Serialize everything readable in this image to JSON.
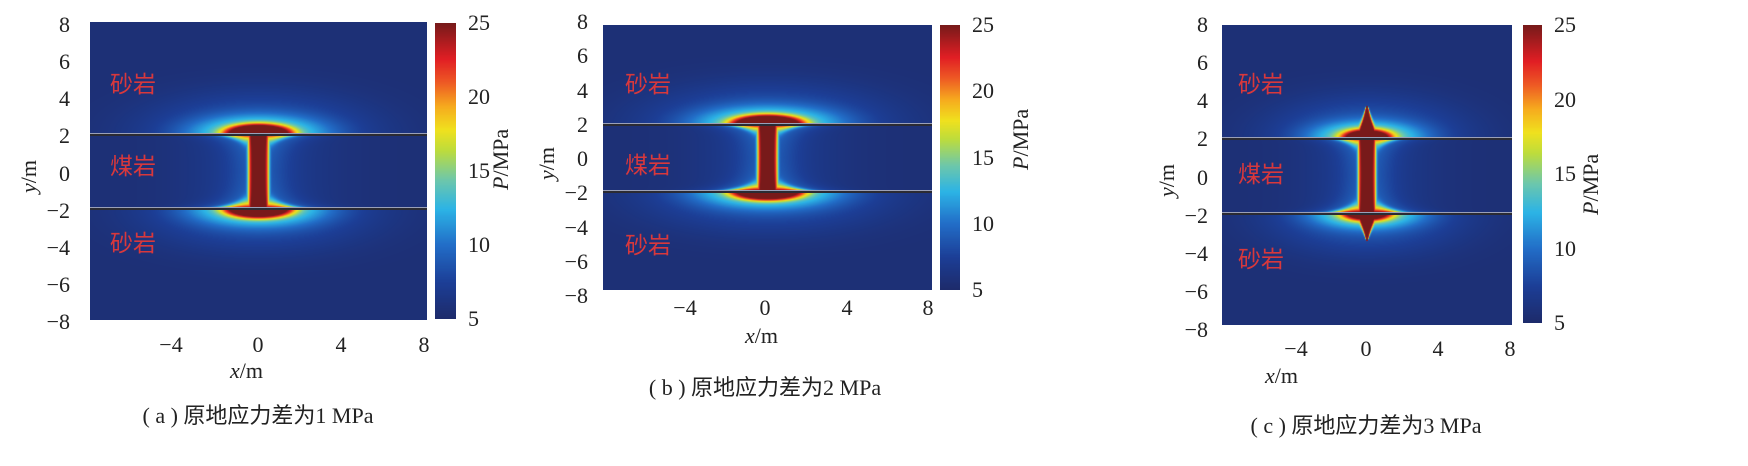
{
  "chart_data": [
    {
      "type": "heatmap",
      "panel": "a",
      "caption": "( a ) 原地应力差为1 MPa",
      "xlabel_var": "x",
      "xlabel_unit": "/m",
      "ylabel_var": "y",
      "ylabel_unit": "/m",
      "xlim": [
        -8,
        8
      ],
      "ylim": [
        -8,
        8
      ],
      "xticks": [
        "−4",
        "0",
        "4",
        "8"
      ],
      "yticks": [
        "8",
        "6",
        "4",
        "2",
        "0",
        "−2",
        "−4",
        "−6",
        "−8"
      ],
      "colorbar": {
        "label_var": "P",
        "label_unit": "/MPa",
        "range": [
          5,
          25
        ],
        "ticks": [
          "25",
          "20",
          "15",
          "10",
          "5"
        ],
        "colormap": "jet"
      },
      "layer_interfaces_y": [
        2,
        -2
      ],
      "regions": [
        {
          "label": "砂岩"
        },
        {
          "label": "煤岩"
        },
        {
          "label": "砂岩"
        }
      ],
      "fracture_tip_y": [
        2.5,
        -2.5
      ]
    },
    {
      "type": "heatmap",
      "panel": "b",
      "caption": "( b ) 原地应力差为2 MPa",
      "xlabel_var": "x",
      "xlabel_unit": "/m",
      "ylabel_var": "y",
      "ylabel_unit": "/m",
      "xlim": [
        -8,
        8
      ],
      "ylim": [
        -8,
        8
      ],
      "xticks": [
        "−4",
        "0",
        "4",
        "8"
      ],
      "yticks": [
        "8",
        "6",
        "4",
        "2",
        "0",
        "−2",
        "−4",
        "−6",
        "−8"
      ],
      "colorbar": {
        "label_var": "P",
        "label_unit": "/MPa",
        "range": [
          5,
          25
        ],
        "ticks": [
          "25",
          "20",
          "15",
          "10",
          "5"
        ],
        "colormap": "jet"
      },
      "layer_interfaces_y": [
        2,
        -2
      ],
      "regions": [
        {
          "label": "砂岩"
        },
        {
          "label": "煤岩"
        },
        {
          "label": "砂岩"
        }
      ],
      "fracture_tip_y": [
        2.6,
        -2.6
      ]
    },
    {
      "type": "heatmap",
      "panel": "c",
      "caption": "( c ) 原地应力差为3 MPa",
      "xlabel_var": "x",
      "xlabel_unit": "/m",
      "ylabel_var": "y",
      "ylabel_unit": "/m",
      "xlim": [
        -8,
        8
      ],
      "ylim": [
        -8,
        8
      ],
      "xticks": [
        "−4",
        "0",
        "4",
        "8"
      ],
      "yticks": [
        "8",
        "6",
        "4",
        "2",
        "0",
        "−2",
        "−4",
        "−6",
        "−8"
      ],
      "colorbar": {
        "label_var": "P",
        "label_unit": "/MPa",
        "range": [
          5,
          25
        ],
        "ticks": [
          "25",
          "20",
          "15",
          "10",
          "5"
        ],
        "colormap": "jet"
      },
      "layer_interfaces_y": [
        2,
        -2
      ],
      "regions": [
        {
          "label": "砂岩"
        },
        {
          "label": "煤岩"
        },
        {
          "label": "砂岩"
        }
      ],
      "fracture_tip_y": [
        3.7,
        -3.5
      ]
    }
  ],
  "colors": {
    "background_field": "#1f2d6b",
    "region_label": "#d8383c",
    "interface_line": "#2b2b33"
  }
}
